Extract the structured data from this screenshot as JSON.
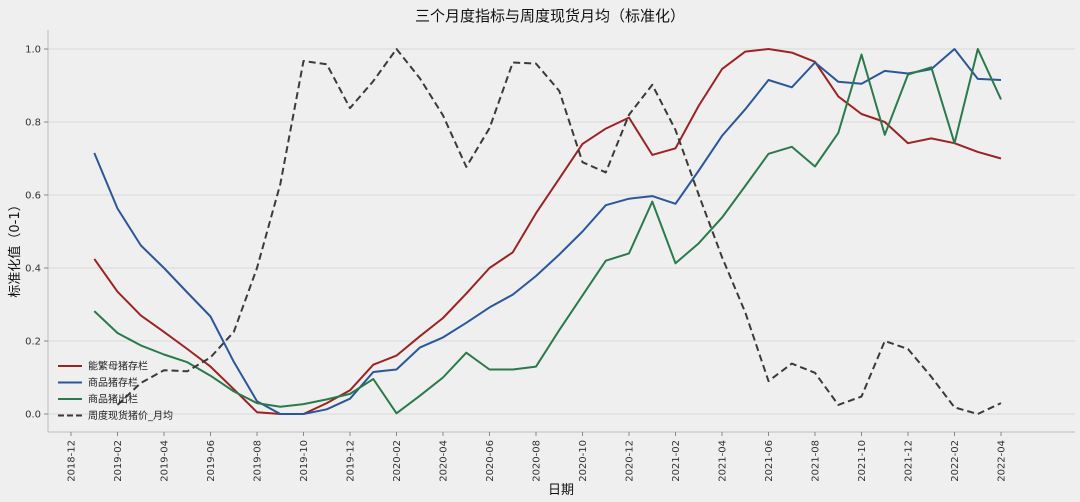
{
  "chart_data": {
    "type": "line",
    "title": "三个月度指标与周度现货月均（标准化）",
    "xlabel": "日期",
    "ylabel": "标准化值（0-1）",
    "ylim": [
      0,
      1
    ],
    "yticks": [
      "0.0",
      "0.2",
      "0.4",
      "0.6",
      "0.8",
      "1.0"
    ],
    "xticks": [
      "2018-12",
      "2019-02",
      "2019-04",
      "2019-06",
      "2019-08",
      "2019-10",
      "2019-12",
      "2020-02",
      "2020-04",
      "2020-06",
      "2020-08",
      "2020-10",
      "2020-12",
      "2021-02",
      "2021-04",
      "2021-06",
      "2021-08",
      "2021-10",
      "2021-12",
      "2022-02",
      "2022-04"
    ],
    "grid": "horizontal",
    "legend_position": "lower-left",
    "series": [
      {
        "name": "能繁母猪存栏",
        "color": "#9b2423",
        "style": "solid",
        "x": [
          "2019-01",
          "2019-02",
          "2019-03",
          "2019-04",
          "2019-05",
          "2019-06",
          "2019-07",
          "2019-08",
          "2019-09",
          "2019-10",
          "2019-11",
          "2019-12",
          "2020-01",
          "2020-02",
          "2020-03",
          "2020-04",
          "2020-05",
          "2020-06",
          "2020-07",
          "2020-08",
          "2020-09",
          "2020-10",
          "2020-11",
          "2020-12",
          "2021-01",
          "2021-02",
          "2021-03",
          "2021-04",
          "2021-05",
          "2021-06",
          "2021-07",
          "2021-08",
          "2021-09",
          "2021-10",
          "2021-11",
          "2021-12",
          "2022-01",
          "2022-02",
          "2022-03",
          "2022-04"
        ],
        "values": [
          0.425,
          0.335,
          0.27,
          0.225,
          0.178,
          0.13,
          0.068,
          0.005,
          0.0,
          0.0,
          0.03,
          0.065,
          0.135,
          0.16,
          0.213,
          0.263,
          0.33,
          0.4,
          0.443,
          0.55,
          0.645,
          0.74,
          0.782,
          0.812,
          0.71,
          0.728,
          0.845,
          0.945,
          0.993,
          1.0,
          0.99,
          0.965,
          0.87,
          0.822,
          0.8,
          0.742,
          0.755,
          0.742,
          0.718,
          0.7
        ]
      },
      {
        "name": "商品猪存栏",
        "color": "#2b579a",
        "style": "solid",
        "x": [
          "2019-01",
          "2019-02",
          "2019-03",
          "2019-04",
          "2019-05",
          "2019-06",
          "2019-07",
          "2019-08",
          "2019-09",
          "2019-10",
          "2019-11",
          "2019-12",
          "2020-01",
          "2020-02",
          "2020-03",
          "2020-04",
          "2020-05",
          "2020-06",
          "2020-07",
          "2020-08",
          "2020-09",
          "2020-10",
          "2020-11",
          "2020-12",
          "2021-01",
          "2021-02",
          "2021-03",
          "2021-04",
          "2021-05",
          "2021-06",
          "2021-07",
          "2021-08",
          "2021-09",
          "2021-10",
          "2021-11",
          "2021-12",
          "2022-01",
          "2022-02",
          "2022-03",
          "2022-04"
        ],
        "values": [
          0.715,
          0.563,
          0.462,
          0.4,
          0.333,
          0.267,
          0.143,
          0.035,
          0.0,
          0.0,
          0.013,
          0.042,
          0.115,
          0.122,
          0.182,
          0.21,
          0.25,
          0.292,
          0.327,
          0.378,
          0.437,
          0.5,
          0.572,
          0.59,
          0.597,
          0.576,
          0.667,
          0.762,
          0.835,
          0.915,
          0.895,
          0.963,
          0.91,
          0.905,
          0.94,
          0.933,
          0.945,
          1.0,
          0.918,
          0.915
        ]
      },
      {
        "name": "商品猪出栏",
        "color": "#2a7a4b",
        "style": "solid",
        "x": [
          "2019-01",
          "2019-02",
          "2019-03",
          "2019-04",
          "2019-05",
          "2019-06",
          "2019-07",
          "2019-08",
          "2019-09",
          "2019-10",
          "2019-11",
          "2019-12",
          "2020-01",
          "2020-02",
          "2020-03",
          "2020-04",
          "2020-05",
          "2020-06",
          "2020-07",
          "2020-08",
          "2020-09",
          "2020-10",
          "2020-11",
          "2020-12",
          "2021-01",
          "2021-02",
          "2021-03",
          "2021-04",
          "2021-05",
          "2021-06",
          "2021-07",
          "2021-08",
          "2021-09",
          "2021-10",
          "2021-11",
          "2021-12",
          "2022-01",
          "2022-02",
          "2022-03",
          "2022-04"
        ],
        "values": [
          0.282,
          0.222,
          0.188,
          0.163,
          0.142,
          0.105,
          0.062,
          0.03,
          0.02,
          0.027,
          0.04,
          0.055,
          0.096,
          0.002,
          0.05,
          0.1,
          0.168,
          0.122,
          0.122,
          0.13,
          0.23,
          0.325,
          0.42,
          0.44,
          0.582,
          0.413,
          0.468,
          0.538,
          0.625,
          0.713,
          0.732,
          0.678,
          0.77,
          0.985,
          0.765,
          0.93,
          0.95,
          0.742,
          1.0,
          0.862
        ]
      },
      {
        "name": "周度现货猪价_月均",
        "color": "#3a3a3a",
        "style": "dashed",
        "x": [
          "2019-02",
          "2019-03",
          "2019-04",
          "2019-05",
          "2019-06",
          "2019-07",
          "2019-08",
          "2019-09",
          "2019-10",
          "2019-11",
          "2019-12",
          "2020-01",
          "2020-02",
          "2020-03",
          "2020-04",
          "2020-05",
          "2020-06",
          "2020-07",
          "2020-08",
          "2020-09",
          "2020-10",
          "2020-11",
          "2020-12",
          "2021-01",
          "2021-02",
          "2021-03",
          "2021-04",
          "2021-05",
          "2021-06",
          "2021-07",
          "2021-08",
          "2021-09",
          "2021-10",
          "2021-11",
          "2021-12",
          "2022-01",
          "2022-02",
          "2022-03",
          "2022-04"
        ],
        "values": [
          0.025,
          0.085,
          0.12,
          0.117,
          0.155,
          0.225,
          0.4,
          0.63,
          0.967,
          0.958,
          0.838,
          0.912,
          1.0,
          0.92,
          0.818,
          0.677,
          0.783,
          0.963,
          0.96,
          0.885,
          0.69,
          0.662,
          0.82,
          0.902,
          0.778,
          0.6,
          0.43,
          0.278,
          0.09,
          0.138,
          0.113,
          0.025,
          0.048,
          0.2,
          0.178,
          0.102,
          0.018,
          0.0,
          0.03
        ]
      }
    ]
  }
}
